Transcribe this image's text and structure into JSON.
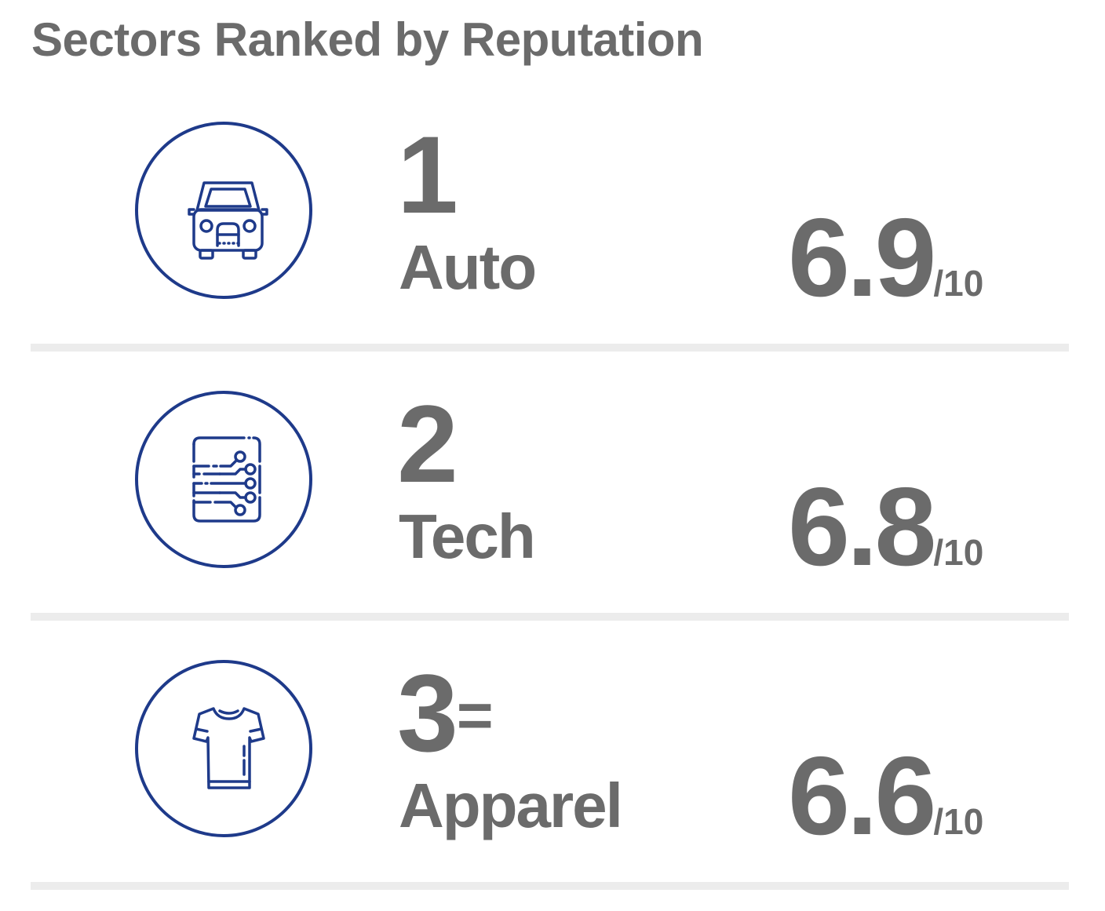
{
  "title": "Sectors Ranked by Reputation",
  "brand_color": "#1e3a8a",
  "text_color": "#6b6b6b",
  "divider_color": "#ececec",
  "rankings": [
    {
      "rank": "1",
      "tie_marker": "",
      "sector": "Auto",
      "score": "6.9",
      "out_of": "/10",
      "icon": "car-icon"
    },
    {
      "rank": "2",
      "tie_marker": "",
      "sector": "Tech",
      "score": "6.8",
      "out_of": "/10",
      "icon": "circuit-board-icon"
    },
    {
      "rank": "3",
      "tie_marker": "=",
      "sector": "Apparel",
      "score": "6.6",
      "out_of": "/10",
      "icon": "t-shirt-icon"
    }
  ]
}
